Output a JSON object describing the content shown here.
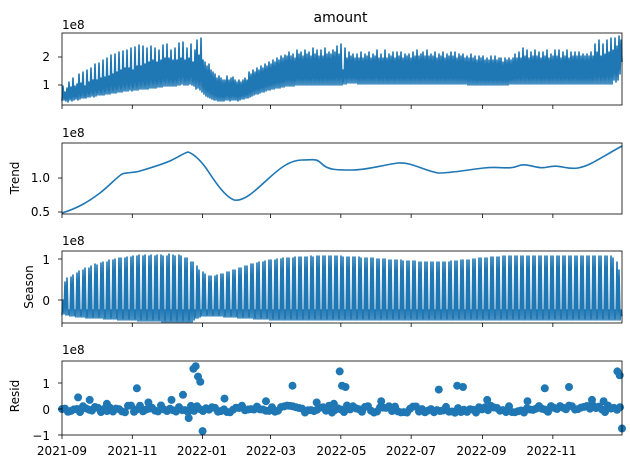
{
  "colors": {
    "line": "#1f77b4",
    "axes": "#000000",
    "background": "#ffffff"
  },
  "x_axis": {
    "ticks": [
      "2021-09",
      "2021-11",
      "2022-01",
      "2022-03",
      "2022-05",
      "2022-07",
      "2022-09",
      "2022-11"
    ]
  },
  "chart_data": [
    {
      "type": "line",
      "title": "amount",
      "ylabel": "",
      "offset_text": "1e8",
      "xlim": [
        "2021-09-01",
        "2022-12-31"
      ],
      "ylim": [
        0.2,
        2.9
      ],
      "yticks": [
        1,
        2
      ],
      "ytick_labels": [
        "1",
        "2"
      ],
      "series": [
        {
          "x": [
            "2021-09-01",
            "2021-09-07",
            "2021-09-14",
            "2021-09-28",
            "2021-10-12",
            "2021-10-26",
            "2021-11-09",
            "2021-11-23",
            "2021-12-07",
            "2021-12-14",
            "2021-12-21",
            "2021-12-28",
            "2022-01-04",
            "2022-01-18",
            "2022-02-01",
            "2022-02-15",
            "2022-03-01",
            "2022-03-15",
            "2022-03-29",
            "2022-04-12",
            "2022-04-26",
            "2022-05-10",
            "2022-05-24",
            "2022-06-07",
            "2022-06-21",
            "2022-07-05",
            "2022-07-19",
            "2022-08-02",
            "2022-08-16",
            "2022-08-30",
            "2022-09-13",
            "2022-09-27",
            "2022-10-11",
            "2022-10-25",
            "2022-11-08",
            "2022-11-22",
            "2022-12-06",
            "2022-12-20",
            "2022-12-31"
          ],
          "values": [
            0.6,
            1.0,
            0.75,
            1.15,
            1.35,
            1.5,
            1.65,
            1.8,
            1.95,
            2.05,
            1.7,
            2.15,
            1.6,
            1.45,
            1.25,
            1.2,
            1.45,
            1.8,
            1.95,
            2.05,
            2.0,
            2.1,
            1.85,
            1.8,
            1.85,
            1.8,
            1.9,
            1.85,
            1.75,
            1.8,
            1.75,
            1.8,
            1.85,
            1.7,
            1.75,
            1.8,
            1.9,
            2.1,
            2.25
          ]
        }
      ]
    },
    {
      "type": "line",
      "ylabel": "Trend",
      "offset_text": "1e8",
      "xlim": [
        "2021-09-01",
        "2022-12-31"
      ],
      "ylim": [
        0.44,
        1.48
      ],
      "yticks": [
        0.5,
        1.0
      ],
      "ytick_labels": [
        "0.5",
        "1.0"
      ],
      "series": [
        {
          "x": [
            "2021-09-01",
            "2021-09-15",
            "2021-10-01",
            "2021-10-15",
            "2021-10-25",
            "2021-11-05",
            "2021-11-20",
            "2021-12-05",
            "2021-12-15",
            "2021-12-23",
            "2022-01-05",
            "2022-01-20",
            "2022-02-01",
            "2022-02-10",
            "2022-02-20",
            "2022-03-05",
            "2022-03-20",
            "2022-04-05",
            "2022-04-12",
            "2022-04-20",
            "2022-05-01",
            "2022-05-15",
            "2022-06-01",
            "2022-06-20",
            "2022-07-05",
            "2022-07-20",
            "2022-08-05",
            "2022-08-20",
            "2022-09-05",
            "2022-09-20",
            "2022-10-01",
            "2022-10-10",
            "2022-10-20",
            "2022-10-30",
            "2022-11-10",
            "2022-11-25",
            "2022-12-10",
            "2022-12-31"
          ],
          "values": [
            0.5,
            0.57,
            0.66,
            0.8,
            0.92,
            1.04,
            1.07,
            1.16,
            1.25,
            1.35,
            1.23,
            0.96,
            0.76,
            0.69,
            0.74,
            0.9,
            1.07,
            1.24,
            1.26,
            1.25,
            1.15,
            1.12,
            1.07,
            1.1,
            1.15,
            1.2,
            1.18,
            1.1,
            1.09,
            1.12,
            1.14,
            1.13,
            1.1,
            1.14,
            1.18,
            1.2,
            1.28,
            1.44
          ]
        }
      ]
    },
    {
      "type": "line",
      "ylabel": "Season",
      "offset_text": "1e8",
      "xlim": [
        "2021-09-01",
        "2022-12-31"
      ],
      "ylim": [
        -0.6,
        1.1
      ],
      "yticks": [
        0,
        1
      ],
      "ytick_labels": [
        "0",
        "1"
      ],
      "series": [
        {
          "x": [
            "2021-09-01",
            "2021-10-01",
            "2021-11-01",
            "2021-12-01",
            "2021-12-20",
            "2022-01-15",
            "2022-02-15",
            "2022-03-15",
            "2022-04-15",
            "2022-05-15",
            "2022-06-15",
            "2022-07-15",
            "2022-08-15",
            "2022-09-15",
            "2022-10-15",
            "2022-11-15",
            "2022-12-15",
            "2022-12-31"
          ],
          "values": [
            0.45,
            0.6,
            0.7,
            0.85,
            0.95,
            0.55,
            0.45,
            0.55,
            0.72,
            0.8,
            0.88,
            0.95,
            0.92,
            0.85,
            0.9,
            0.95,
            0.95,
            0.85
          ]
        }
      ]
    },
    {
      "type": "scatter",
      "ylabel": "Resid",
      "offset_text": "1e8",
      "xlim": [
        "2021-09-01",
        "2022-12-31"
      ],
      "ylim": [
        -1.0,
        1.85
      ],
      "yticks": [
        -1,
        0,
        1
      ],
      "ytick_labels": [
        "−1",
        "0",
        "1"
      ],
      "series": [
        {
          "x": [
            "2021-09-15",
            "2021-09-25",
            "2021-10-10",
            "2021-11-05",
            "2021-11-15",
            "2021-12-05",
            "2021-12-15",
            "2021-12-20",
            "2021-12-24",
            "2021-12-26",
            "2021-12-28",
            "2021-12-30",
            "2022-01-01",
            "2022-01-20",
            "2022-02-25",
            "2022-03-20",
            "2022-04-10",
            "2022-04-25",
            "2022-04-30",
            "2022-05-02",
            "2022-05-05",
            "2022-06-05",
            "2022-07-25",
            "2022-08-10",
            "2022-08-15",
            "2022-09-05",
            "2022-10-10",
            "2022-10-25",
            "2022-11-15",
            "2022-12-05",
            "2022-12-15",
            "2022-12-27",
            "2022-12-29",
            "2022-12-31"
          ],
          "values": [
            0.45,
            0.35,
            0.2,
            0.8,
            0.25,
            0.35,
            0.55,
            -0.35,
            1.55,
            1.65,
            1.25,
            1.05,
            -0.85,
            0.4,
            0.3,
            0.9,
            0.25,
            0.2,
            1.45,
            0.9,
            0.85,
            0.3,
            0.75,
            0.9,
            0.85,
            0.35,
            0.3,
            0.8,
            0.85,
            0.35,
            0.3,
            1.45,
            1.3,
            -0.75
          ]
        }
      ]
    }
  ]
}
